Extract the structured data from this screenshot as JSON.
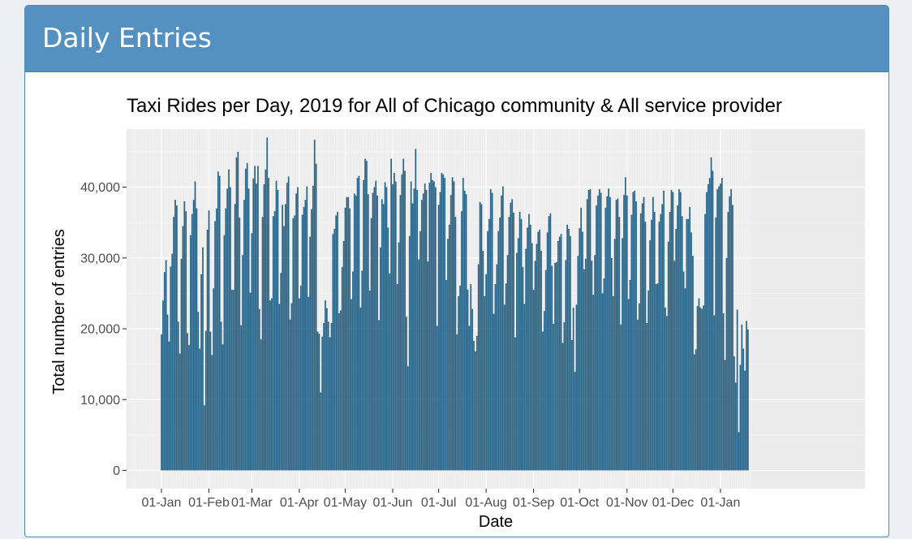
{
  "panel": {
    "title": "Daily Entries"
  },
  "chart_data": {
    "type": "bar",
    "title": "Taxi Rides per Day, 2019 for  All of Chicago  community &  All  service provider",
    "xlabel": "Date",
    "ylabel": "Total number of entries",
    "x_start": "2019-01-01",
    "ylim": [
      0,
      48200
    ],
    "y_ticks": [
      {
        "value": 0,
        "label": "0"
      },
      {
        "value": 10000,
        "label": "10,000"
      },
      {
        "value": 20000,
        "label": "20,000"
      },
      {
        "value": 30000,
        "label": "30,000"
      },
      {
        "value": 40000,
        "label": "40,000"
      }
    ],
    "x_ticks": [
      {
        "date": "2019-01-01",
        "label": "01-Jan"
      },
      {
        "date": "2019-02-01",
        "label": "01-Feb"
      },
      {
        "date": "2019-03-01",
        "label": "01-Mar"
      },
      {
        "date": "2019-04-01",
        "label": "01-Apr"
      },
      {
        "date": "2019-05-01",
        "label": "01-May"
      },
      {
        "date": "2019-06-01",
        "label": "01-Jun"
      },
      {
        "date": "2019-07-01",
        "label": "01-Jul"
      },
      {
        "date": "2019-08-01",
        "label": "01-Aug"
      },
      {
        "date": "2019-09-01",
        "label": "01-Sep"
      },
      {
        "date": "2019-10-01",
        "label": "01-Oct"
      },
      {
        "date": "2019-11-01",
        "label": "01-Nov"
      },
      {
        "date": "2019-12-01",
        "label": "01-Dec"
      },
      {
        "date": "2020-01-01",
        "label": "01-Jan"
      }
    ],
    "grid": true,
    "bar_color": "#2c6688",
    "values": [
      19200,
      24000,
      28000,
      29700,
      22000,
      18200,
      28800,
      30600,
      35800,
      38200,
      37400,
      21000,
      16500,
      29900,
      34500,
      38000,
      36600,
      19400,
      17700,
      33200,
      36200,
      38200,
      40800,
      37000,
      22400,
      17200,
      27700,
      31500,
      9200,
      19700,
      34000,
      36700,
      19600,
      16300,
      25700,
      35200,
      37000,
      42200,
      41600,
      21000,
      17800,
      33200,
      37000,
      39800,
      42500,
      40000,
      25500,
      25500,
      37600,
      44200,
      45000,
      35700,
      20500,
      30400,
      38200,
      42600,
      43400,
      39800,
      25100,
      33500,
      41200,
      43000,
      40500,
      43000,
      22800,
      18500,
      35800,
      40400,
      42500,
      47000,
      41300,
      24000,
      24300,
      35900,
      36600,
      40900,
      39600,
      23500,
      27900,
      37500,
      34500,
      37600,
      40600,
      41500,
      21300,
      23600,
      35600,
      36000,
      39100,
      40000,
      24300,
      26100,
      36100,
      37200,
      38200,
      40100,
      24500,
      33000,
      36900,
      40200,
      46700,
      43300,
      19600,
      19300,
      11000,
      18900,
      20800,
      24000,
      22900,
      21000,
      18800,
      20800,
      33400,
      34100,
      36000,
      36500,
      22200,
      22600,
      28700,
      32400,
      37100,
      38600,
      38600,
      37000,
      24200,
      28100,
      39100,
      38800,
      41300,
      41600,
      23000,
      28200,
      41000,
      44000,
      43700,
      39000,
      25400,
      35600,
      39200,
      40000,
      40900,
      38800,
      21200,
      31500,
      38300,
      37600,
      40700,
      40000,
      34300,
      27800,
      44000,
      40400,
      42000,
      40800,
      26300,
      32200,
      38900,
      41800,
      44000,
      42300,
      21700,
      14700,
      33100,
      40800,
      37700,
      39800,
      45400,
      39600,
      29800,
      33800,
      38200,
      39100,
      40500,
      39600,
      29500,
      40600,
      42000,
      41000,
      40800,
      40000,
      20400,
      37500,
      39300,
      42000,
      41800,
      41300,
      26900,
      32700,
      34700,
      38900,
      41400,
      40800,
      35800,
      19200,
      24600,
      26100,
      36600,
      41300,
      39500,
      39000,
      25500,
      20400,
      26300,
      22800,
      18300,
      16800,
      19000,
      29100,
      37900,
      37600,
      31000,
      24600,
      27700,
      33800,
      35500,
      39700,
      39200,
      22100,
      26300,
      29100,
      33800,
      35700,
      38800,
      40100,
      23400,
      26400,
      30400,
      35800,
      37800,
      38300,
      36400,
      18800,
      30700,
      32800,
      36500,
      35500,
      28700,
      23500,
      31300,
      34300,
      36200,
      34700,
      32100,
      25500,
      29600,
      32000,
      33700,
      34000,
      31000,
      19600,
      22500,
      28300,
      33600,
      35900,
      36300,
      28900,
      20700,
      29300,
      29400,
      32400,
      33000,
      33400,
      18000,
      20900,
      29700,
      34700,
      34100,
      33100,
      18400,
      23000,
      13900,
      23400,
      30300,
      34200,
      37100,
      33700,
      28400,
      29900,
      38300,
      39600,
      39700,
      29600,
      24800,
      30400,
      37400,
      38800,
      39700,
      39200,
      25000,
      27100,
      37100,
      38700,
      39800,
      38600,
      30000,
      24600,
      32700,
      38200,
      38400,
      35800,
      20600,
      32800,
      38900,
      41400,
      38800,
      24200,
      26900,
      36100,
      39300,
      39500,
      38000,
      21300,
      23600,
      36300,
      37700,
      38600,
      35100,
      20800,
      25400,
      32500,
      35400,
      38600,
      36500,
      26300,
      26400,
      35100,
      36200,
      37600,
      39500,
      23000,
      21800,
      32300,
      36500,
      39600,
      39300,
      29600,
      34100,
      37400,
      39700,
      39300,
      35900,
      28100,
      25700,
      35500,
      35500,
      37200,
      33600,
      30300,
      16400,
      17100,
      23200,
      24300,
      23000,
      22800,
      23300,
      36200,
      39300,
      40400,
      41300,
      44200,
      42300,
      21900,
      35700,
      39700,
      40100,
      40500,
      41300,
      22200,
      15600,
      30000,
      36500,
      38700,
      39700,
      37500,
      16100,
      12400,
      22700,
      5400,
      14900,
      20600,
      17200,
      14100,
      21100,
      19900
    ]
  }
}
